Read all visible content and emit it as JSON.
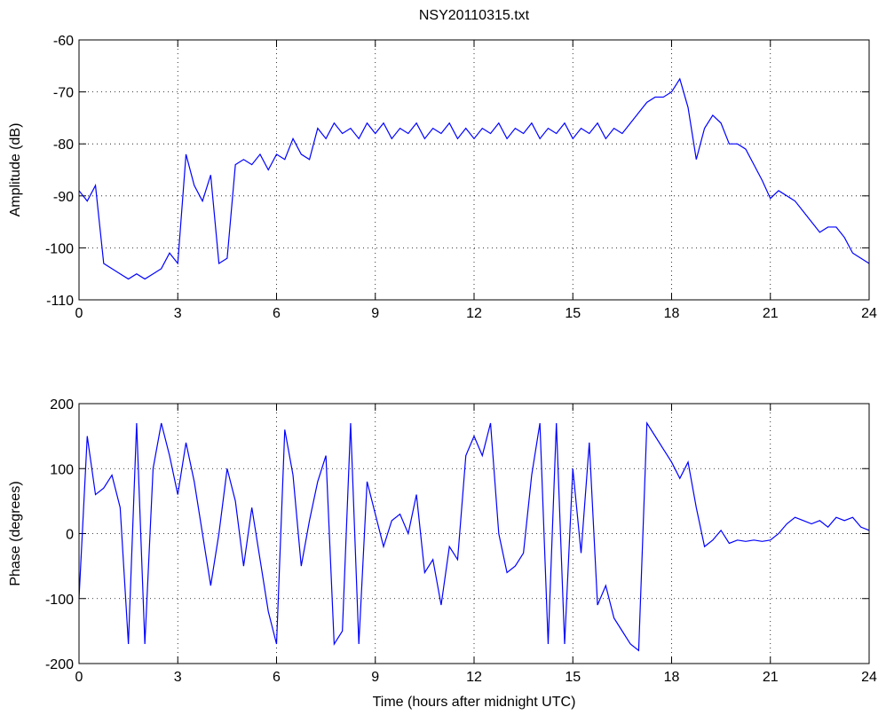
{
  "chart_data": [
    {
      "type": "line",
      "title": "NSY20110315.txt",
      "ylabel": "Amplitude (dB)",
      "grid": true,
      "xlim": [
        0,
        24
      ],
      "xticks": [
        0,
        3,
        6,
        9,
        12,
        15,
        18,
        21,
        24
      ],
      "ylim": [
        -110,
        -60
      ],
      "yticks": [
        -110,
        -100,
        -90,
        -80,
        -70,
        -60
      ],
      "x": [
        0,
        0.25,
        0.5,
        0.75,
        1,
        1.25,
        1.5,
        1.75,
        2,
        2.25,
        2.5,
        2.75,
        3,
        3.25,
        3.5,
        3.75,
        4,
        4.25,
        4.5,
        4.75,
        5,
        5.25,
        5.5,
        5.75,
        6,
        6.25,
        6.5,
        6.75,
        7,
        7.25,
        7.5,
        7.75,
        8,
        8.25,
        8.5,
        8.75,
        9,
        9.25,
        9.5,
        9.75,
        10,
        10.25,
        10.5,
        10.75,
        11,
        11.25,
        11.5,
        11.75,
        12,
        12.25,
        12.5,
        12.75,
        13,
        13.25,
        13.5,
        13.75,
        14,
        14.25,
        14.5,
        14.75,
        15,
        15.25,
        15.5,
        15.75,
        16,
        16.25,
        16.5,
        16.75,
        17,
        17.25,
        17.5,
        17.75,
        18,
        18.25,
        18.5,
        18.75,
        19,
        19.25,
        19.5,
        19.75,
        20,
        20.25,
        20.5,
        20.75,
        21,
        21.25,
        21.5,
        21.75,
        22,
        22.25,
        22.5,
        22.75,
        23,
        23.25,
        23.5,
        23.75,
        24
      ],
      "series": [
        {
          "color": "#0000ff",
          "values": [
            -89,
            -91,
            -88,
            -103,
            -104,
            -105,
            -106,
            -105,
            -106,
            -105,
            -104,
            -101,
            -103,
            -82,
            -88,
            -91,
            -86,
            -103,
            -102,
            -84,
            -83,
            -84,
            -82,
            -85,
            -82,
            -83,
            -79,
            -82,
            -83,
            -77,
            -79,
            -76,
            -78,
            -77,
            -79,
            -76,
            -78,
            -76,
            -79,
            -77,
            -78,
            -76,
            -79,
            -77,
            -78,
            -76,
            -79,
            -77,
            -79,
            -77,
            -78,
            -76,
            -79,
            -77,
            -78,
            -76,
            -79,
            -77,
            -78,
            -76,
            -79,
            -77,
            -78,
            -76,
            -79,
            -77,
            -78,
            -76,
            -74,
            -72,
            -71,
            -71,
            -70,
            -67.5,
            -73,
            -83,
            -77,
            -74.5,
            -76,
            -80,
            -80,
            -81,
            -84,
            -87,
            -90.5,
            -89,
            -90,
            -91,
            -93,
            -95,
            -97,
            -96,
            -96,
            -98,
            -101,
            -102,
            -103
          ]
        }
      ]
    },
    {
      "type": "line",
      "ylabel": "Phase (degrees)",
      "xlabel": "Time (hours after midnight UTC)",
      "grid": true,
      "xlim": [
        0,
        24
      ],
      "xticks": [
        0,
        3,
        6,
        9,
        12,
        15,
        18,
        21,
        24
      ],
      "ylim": [
        -200,
        200
      ],
      "yticks": [
        -200,
        -100,
        0,
        100,
        200
      ],
      "x": [
        0,
        0.25,
        0.5,
        0.75,
        1,
        1.25,
        1.5,
        1.75,
        2,
        2.25,
        2.5,
        2.75,
        3,
        3.25,
        3.5,
        3.75,
        4,
        4.25,
        4.5,
        4.75,
        5,
        5.25,
        5.5,
        5.75,
        6,
        6.25,
        6.5,
        6.75,
        7,
        7.25,
        7.5,
        7.75,
        8,
        8.25,
        8.5,
        8.75,
        9,
        9.25,
        9.5,
        9.75,
        10,
        10.25,
        10.5,
        10.75,
        11,
        11.25,
        11.5,
        11.75,
        12,
        12.25,
        12.5,
        12.75,
        13,
        13.25,
        13.5,
        13.75,
        14,
        14.25,
        14.5,
        14.75,
        15,
        15.25,
        15.5,
        15.75,
        16,
        16.25,
        16.5,
        16.75,
        17,
        17.25,
        17.5,
        17.75,
        18,
        18.25,
        18.5,
        18.75,
        19,
        19.25,
        19.5,
        19.75,
        20,
        20.25,
        20.5,
        20.75,
        21,
        21.25,
        21.5,
        21.75,
        22,
        22.25,
        22.5,
        22.75,
        23,
        23.25,
        23.5,
        23.75,
        24
      ],
      "series": [
        {
          "color": "#0000ff",
          "values": [
            -100,
            150,
            60,
            70,
            90,
            40,
            -170,
            170,
            -170,
            100,
            170,
            120,
            60,
            140,
            80,
            0,
            -80,
            0,
            100,
            50,
            -50,
            40,
            -40,
            -120,
            -170,
            160,
            90,
            -50,
            20,
            80,
            120,
            -170,
            -150,
            170,
            -170,
            80,
            30,
            -20,
            20,
            30,
            0,
            60,
            -60,
            -40,
            -110,
            -20,
            -40,
            120,
            150,
            120,
            170,
            0,
            -60,
            -50,
            -30,
            90,
            170,
            -170,
            170,
            -170,
            100,
            -30,
            140,
            -110,
            -80,
            -130,
            -150,
            -170,
            -180,
            170,
            150,
            130,
            110,
            85,
            110,
            40,
            -20,
            -10,
            5,
            -15,
            -10,
            -12,
            -10,
            -12,
            -10,
            0,
            15,
            25,
            20,
            15,
            20,
            10,
            25,
            20,
            25,
            10,
            5
          ]
        }
      ]
    }
  ]
}
